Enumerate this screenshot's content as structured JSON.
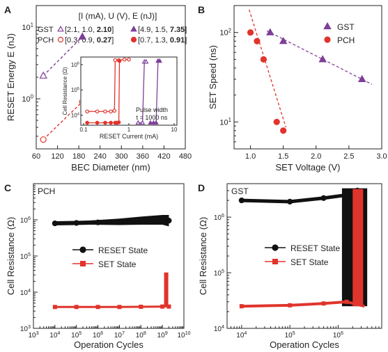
{
  "chart_data": [
    {
      "panel": "A",
      "type": "scatter",
      "xlabel": "BEC Diameter (nm)",
      "ylabel": "RESET Energy E (nJ)",
      "xlim": [
        60,
        480
      ],
      "ylim": [
        0.2,
        20
      ],
      "yscale": "log",
      "xticks": [
        "60",
        "120",
        "180",
        "240",
        "300",
        "360",
        "420",
        "480"
      ],
      "yticks": [
        "10^0",
        "10^1"
      ],
      "legend_header": "[I (mA), U (V), E (nJ)]",
      "legend": [
        {
          "name": "GST",
          "small": "[2.1, 1.0, ",
          "small_bold": "2.10",
          "large": "[4.9, 1.5, ",
          "large_bold": "7.35",
          "color": "#7e3f98"
        },
        {
          "name": "PCH",
          "small": "[0.3, 0.9, ",
          "small_bold": "0.27",
          "large": "[0.7, 1.3, ",
          "large_bold": "0.91",
          "color": "#e0342c"
        }
      ],
      "series": [
        {
          "name": "GST",
          "marker": "triangle",
          "x": [
            80,
            190
          ],
          "y": [
            2.1,
            7.35
          ]
        },
        {
          "name": "PCH",
          "marker": "circle",
          "x": [
            80,
            190
          ],
          "y": [
            0.27,
            0.91
          ]
        }
      ],
      "inset": {
        "xlabel": "RESET Current (mA)",
        "ylabel": "Cell Resistance (Ω)",
        "xscale": "log",
        "yscale": "log",
        "xticks": [
          "0.1",
          "1",
          "10"
        ],
        "yticks": [
          "10^4",
          "10^5",
          "10^6"
        ],
        "note_line1": "Pulse width",
        "note_line2": "t = 1000 ns"
      }
    },
    {
      "panel": "B",
      "type": "scatter",
      "xlabel": "SET Voltage (V)",
      "ylabel": "SET Speed (ns)",
      "xlim": [
        0.75,
        3.0
      ],
      "ylim": [
        5,
        200
      ],
      "yscale": "log",
      "xticks": [
        "1.0",
        "1.5",
        "2.0",
        "2.5",
        "3.0"
      ],
      "yticks": [
        "10^1",
        "10^2"
      ],
      "series": [
        {
          "name": "GST",
          "marker": "triangle",
          "color": "#7e3f98",
          "x": [
            1.3,
            1.5,
            2.1,
            2.7
          ],
          "y": [
            100,
            80,
            50,
            30
          ]
        },
        {
          "name": "PCH",
          "marker": "circle",
          "color": "#e0342c",
          "x": [
            1.0,
            1.1,
            1.2,
            1.4,
            1.5
          ],
          "y": [
            100,
            80,
            50,
            10,
            8
          ]
        }
      ]
    },
    {
      "panel": "C",
      "type": "line",
      "title": "PCH",
      "xlabel": "Operation Cycles",
      "ylabel": "Cell Resistance (Ω)",
      "xscale": "log",
      "yscale": "log",
      "xlim": [
        1000,
        10000000000
      ],
      "ylim": [
        1000,
        10000000
      ],
      "xticks": [
        "10^3",
        "10^4",
        "10^5",
        "10^6",
        "10^7",
        "10^8",
        "10^9",
        "10^10"
      ],
      "yticks": [
        "10^3",
        "10^4",
        "10^5",
        "10^6"
      ],
      "series": [
        {
          "name": "RESET State",
          "color": "#111111",
          "marker": "circle",
          "x": [
            10000,
            100000,
            1000000,
            10000000,
            100000000,
            1000000000,
            2000000000
          ],
          "y": [
            800000,
            820000,
            850000,
            880000,
            950000,
            1000000,
            950000
          ]
        },
        {
          "name": "SET State",
          "color": "#e0342c",
          "marker": "square",
          "x": [
            10000,
            100000,
            1000000,
            10000000,
            100000000,
            1000000000,
            1500000000,
            2000000000
          ],
          "y": [
            3900,
            3900,
            3900,
            3900,
            3950,
            4000,
            30000,
            4000
          ]
        }
      ]
    },
    {
      "panel": "D",
      "type": "line",
      "title": "GST",
      "xlabel": "Operation Cycles",
      "ylabel": "Cell Resistance (Ω)",
      "xscale": "log",
      "yscale": "log",
      "xlim": [
        5000,
        8000000
      ],
      "ylim": [
        10000,
        4000000
      ],
      "xticks": [
        "10^4",
        "10^5",
        "10^6"
      ],
      "yticks": [
        "10^4",
        "10^5",
        "10^6"
      ],
      "series": [
        {
          "name": "RESET State",
          "color": "#111111",
          "marker": "circle",
          "x": [
            10000,
            100000,
            500000,
            1500000,
            2500000,
            3500000
          ],
          "y": [
            2000000,
            1900000,
            2200000,
            2500000,
            3000000,
            30000
          ]
        },
        {
          "name": "SET State",
          "color": "#e0342c",
          "marker": "square",
          "x": [
            10000,
            100000,
            500000,
            1500000,
            2500000,
            3500000
          ],
          "y": [
            25000,
            26000,
            28000,
            30000,
            3000000,
            25000
          ]
        }
      ]
    }
  ]
}
